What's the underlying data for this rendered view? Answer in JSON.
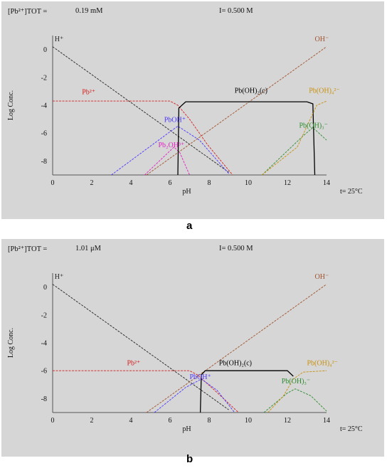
{
  "figure": {
    "sub_labels": [
      "a",
      "b"
    ]
  },
  "colors": {
    "H": "#222222",
    "OH": "#a0522d",
    "Pb2": "#d42020",
    "PbOH": "#4a35ff",
    "Pb2OH3": "#e020c0",
    "PbOH2c": "#000000",
    "PbOH3": "#2e8b2e",
    "PbOH4": "#c8900c"
  },
  "chart_data": [
    {
      "type": "line",
      "header_left": "[Pb²⁺]TOT =",
      "header_conc": "0.19 mM",
      "header_ionic": "I= 0.500 M",
      "xlabel": "pH",
      "ylabel": "Log Conc.",
      "temperature": "t= 25°C",
      "xlim": [
        0,
        14
      ],
      "ylim": [
        -9,
        1
      ],
      "xticks": [
        "0",
        "2",
        "4",
        "6",
        "8",
        "10",
        "12",
        "14"
      ],
      "yticks": [
        "0",
        "-2",
        "-4",
        "-6",
        "-8"
      ],
      "ytick_values": [
        0,
        -2,
        -4,
        -6,
        -8
      ],
      "series": [
        {
          "key": "H",
          "name": "H⁺",
          "color_key": "H",
          "x": [
            0,
            9.0
          ],
          "y": [
            0.2,
            -8.8
          ]
        },
        {
          "key": "OH",
          "name": "OH⁻",
          "color_key": "OH",
          "x": [
            4.8,
            14
          ],
          "y": [
            -9,
            0.2
          ]
        },
        {
          "key": "Pb2",
          "name": "Pb²⁺",
          "color_key": "Pb2",
          "x": [
            0,
            6.0,
            6.4,
            7.0,
            7.9,
            9.2
          ],
          "y": [
            -3.7,
            -3.7,
            -4.0,
            -5.0,
            -6.8,
            -9.0
          ]
        },
        {
          "key": "PbOH",
          "name": "PbOH⁺",
          "color_key": "PbOH",
          "x": [
            3.0,
            5.9,
            6.4,
            7.5,
            9.0
          ],
          "y": [
            -9.0,
            -6.0,
            -5.5,
            -6.5,
            -8.9
          ]
        },
        {
          "key": "Pb2OH3",
          "name": "Pb₂OH³⁺",
          "color_key": "Pb2OH3",
          "x": [
            4.7,
            6.2,
            6.5,
            7.0
          ],
          "y": [
            -9.0,
            -7.0,
            -7.4,
            -9.0
          ]
        },
        {
          "key": "PbOH2c",
          "name": "Pb(OH)₂(c)",
          "color_key": "PbOH2c",
          "x": [
            6.4,
            6.45,
            6.8,
            13.0,
            13.3,
            13.4
          ],
          "y": [
            -9.0,
            -4.2,
            -3.75,
            -3.75,
            -3.9,
            -9.0
          ]
        },
        {
          "key": "PbOH3",
          "name": "Pb(OH)₃⁻",
          "color_key": "PbOH3",
          "x": [
            10.7,
            12.8,
            13.3,
            14.0
          ],
          "y": [
            -9.0,
            -6.2,
            -5.6,
            -6.5
          ]
        },
        {
          "key": "PbOH4",
          "name": "Pb(OH)₄²⁻",
          "color_key": "PbOH4",
          "x": [
            10.7,
            12.5,
            13.3,
            13.5,
            14.0
          ],
          "y": [
            -9.0,
            -7.0,
            -4.6,
            -4.0,
            -3.7
          ]
        }
      ],
      "annotations": [
        {
          "text": "H⁺",
          "x": 0.1,
          "y": 0.6,
          "color_key": "H"
        },
        {
          "text": "OH⁻",
          "x": 13.4,
          "y": 0.6,
          "color_key": "OH"
        },
        {
          "text": "Pb²⁺",
          "x": 1.5,
          "y": -3.2,
          "color_key": "Pb2"
        },
        {
          "text": "Pb(OH)₂(c)",
          "x": 9.3,
          "y": -3.1,
          "color_key": "PbOH2c"
        },
        {
          "text": "Pb(OH)₄²⁻",
          "x": 13.1,
          "y": -3.1,
          "color_key": "PbOH4"
        },
        {
          "text": "PbOH⁺",
          "x": 5.7,
          "y": -5.2,
          "color_key": "PbOH"
        },
        {
          "text": "Pb(OH)₃⁻",
          "x": 12.6,
          "y": -5.6,
          "color_key": "PbOH3"
        },
        {
          "text": "Pb₂OH³⁺",
          "x": 5.4,
          "y": -7.0,
          "color_key": "Pb2OH3"
        }
      ]
    },
    {
      "type": "line",
      "header_left": "[Pb²⁺]TOT =",
      "header_conc": "1.01 μM",
      "header_ionic": "I= 0.500 M",
      "xlabel": "pH",
      "ylabel": "Log Conc.",
      "temperature": "t= 25°C",
      "xlim": [
        0,
        14
      ],
      "ylim": [
        -9,
        1
      ],
      "xticks": [
        "0",
        "2",
        "4",
        "6",
        "8",
        "10",
        "12",
        "14"
      ],
      "yticks": [
        "0",
        "-2",
        "-4",
        "-6",
        "-8"
      ],
      "ytick_values": [
        0,
        -2,
        -4,
        -6,
        -8
      ],
      "series": [
        {
          "key": "H",
          "name": "H⁺",
          "color_key": "H",
          "x": [
            0,
            9.0
          ],
          "y": [
            0.2,
            -8.8
          ]
        },
        {
          "key": "OH",
          "name": "OH⁻",
          "color_key": "OH",
          "x": [
            4.8,
            14
          ],
          "y": [
            -9,
            0.2
          ]
        },
        {
          "key": "Pb2",
          "name": "Pb²⁺",
          "color_key": "Pb2",
          "x": [
            0,
            7.0,
            7.4,
            8.2,
            9.5
          ],
          "y": [
            -6.0,
            -6.0,
            -6.3,
            -7.3,
            -9.0
          ]
        },
        {
          "key": "PbOH",
          "name": "PbOH⁺",
          "color_key": "PbOH",
          "x": [
            5.2,
            6.8,
            7.6,
            8.4,
            9.3
          ],
          "y": [
            -9.0,
            -7.2,
            -6.6,
            -7.4,
            -9.0
          ]
        },
        {
          "key": "PbOH2c",
          "name": "Pb(OH)₂(c)",
          "color_key": "PbOH2c",
          "x": [
            7.55,
            7.6,
            7.8,
            12.0,
            12.3
          ],
          "y": [
            -9.0,
            -6.3,
            -6.0,
            -6.0,
            -6.4
          ]
        },
        {
          "key": "PbOH3",
          "name": "Pb(OH)₃⁻",
          "color_key": "PbOH3",
          "x": [
            10.8,
            12.0,
            12.4,
            13.2,
            14.0
          ],
          "y": [
            -9.0,
            -7.6,
            -7.3,
            -7.8,
            -8.9
          ]
        },
        {
          "key": "PbOH4",
          "name": "Pb(OH)₄²⁻",
          "color_key": "PbOH4",
          "x": [
            11.0,
            11.8,
            12.3,
            12.8,
            14.0
          ],
          "y": [
            -9.0,
            -7.8,
            -6.6,
            -6.1,
            -6.0
          ]
        }
      ],
      "annotations": [
        {
          "text": "H⁺",
          "x": 0.1,
          "y": 0.6,
          "color_key": "H"
        },
        {
          "text": "OH⁻",
          "x": 13.4,
          "y": 0.6,
          "color_key": "OH"
        },
        {
          "text": "Pb²⁺",
          "x": 3.8,
          "y": -5.6,
          "color_key": "Pb2"
        },
        {
          "text": "Pb(OH)₂(c)",
          "x": 8.5,
          "y": -5.6,
          "color_key": "PbOH2c"
        },
        {
          "text": "Pb(OH)₄²⁻",
          "x": 13.0,
          "y": -5.6,
          "color_key": "PbOH4"
        },
        {
          "text": "PbOH⁺",
          "x": 7.0,
          "y": -6.6,
          "color_key": "PbOH"
        },
        {
          "text": "Pb(OH)₃⁻",
          "x": 11.7,
          "y": -6.9,
          "color_key": "PbOH3"
        }
      ]
    }
  ]
}
